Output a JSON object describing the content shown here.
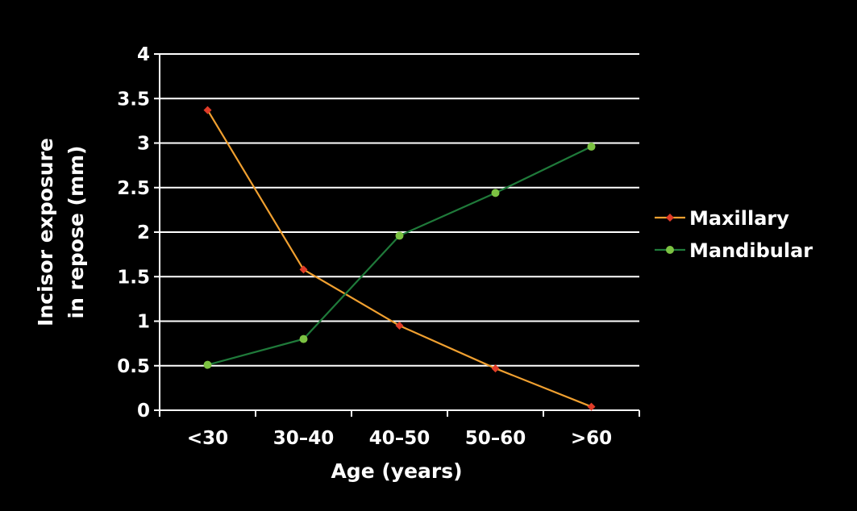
{
  "chart_data": {
    "type": "line",
    "categories": [
      "<30",
      "30–40",
      "40–50",
      "50–60",
      ">60"
    ],
    "series": [
      {
        "name": "Maxillary",
        "values": [
          3.37,
          1.58,
          0.95,
          0.47,
          0.04
        ],
        "color": "#f0a030",
        "marker": "diamond",
        "marker_color": "#e03c28"
      },
      {
        "name": "Mandibular",
        "values": [
          0.51,
          0.8,
          1.96,
          2.44,
          2.96
        ],
        "color": "#1f7a3a",
        "marker": "circle",
        "marker_color": "#7cc242"
      }
    ],
    "title": "",
    "xlabel": "Age (years)",
    "ylabel_lines": [
      "Incisor exposure",
      "in repose (mm)"
    ],
    "ylim": [
      0,
      4
    ],
    "yticks": [
      "0",
      "0.5",
      "1",
      "1.5",
      "2",
      "2.5",
      "3",
      "3.5",
      "4"
    ],
    "grid": true,
    "legend_position": "right",
    "background": "#000000"
  }
}
